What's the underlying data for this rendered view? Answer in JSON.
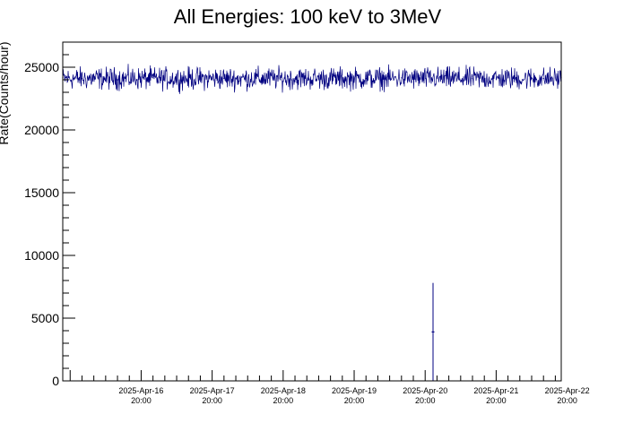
{
  "chart_data": {
    "type": "line",
    "title": "All Energies:  100 keV to 3MeV",
    "ylabel": "Rate(Counts/hour)",
    "xlabel": "",
    "ylim": [
      0,
      27000
    ],
    "xlim": [
      "2025-04-15 17:30",
      "2025-04-22 18:00"
    ],
    "y_ticks": [
      0,
      5000,
      10000,
      15000,
      20000,
      25000
    ],
    "x_ticks": [
      {
        "value": "2025-04-16 20:00",
        "date_label": "2025-Apr-16",
        "time_label": "20:00"
      },
      {
        "value": "2025-04-17 20:00",
        "date_label": "2025-Apr-17",
        "time_label": "20:00"
      },
      {
        "value": "2025-04-18 20:00",
        "date_label": "2025-Apr-18",
        "time_label": "20:00"
      },
      {
        "value": "2025-04-19 20:00",
        "date_label": "2025-Apr-19",
        "time_label": "20:00"
      },
      {
        "value": "2025-04-20 20:00",
        "date_label": "2025-Apr-20",
        "time_label": "20:00"
      },
      {
        "value": "2025-04-21 20:00",
        "date_label": "2025-Apr-21",
        "time_label": "20:00"
      },
      {
        "value": "2025-04-22 20:00",
        "date_label": "2025-Apr-22",
        "time_label": "20:00"
      }
    ],
    "series": [
      {
        "color": "#000080",
        "baseline_mean": 24100,
        "noise_band": [
          23000,
          25600
        ],
        "points": [
          {
            "x": "2025-04-15 17:30",
            "y": 24200
          },
          {
            "x": "2025-04-16 00:00",
            "y": 24100
          },
          {
            "x": "2025-04-16 12:00",
            "y": 24000
          },
          {
            "x": "2025-04-17 00:00",
            "y": 24150
          },
          {
            "x": "2025-04-17 12:00",
            "y": 24050
          },
          {
            "x": "2025-04-18 00:00",
            "y": 24100
          },
          {
            "x": "2025-04-18 12:00",
            "y": 24000
          },
          {
            "x": "2025-04-19 00:00",
            "y": 24100
          },
          {
            "x": "2025-04-19 12:00",
            "y": 24050
          },
          {
            "x": "2025-04-20 00:00",
            "y": 24100
          },
          {
            "x": "2025-04-20 12:00",
            "y": 24150
          },
          {
            "x": "2025-04-20 22:40",
            "y": 7800
          },
          {
            "x": "2025-04-20 22:40",
            "y": 3900
          },
          {
            "x": "2025-04-21 00:00",
            "y": 24200
          },
          {
            "x": "2025-04-21 12:00",
            "y": 24100
          },
          {
            "x": "2025-04-22 00:00",
            "y": 24150
          },
          {
            "x": "2025-04-22 12:00",
            "y": 24100
          },
          {
            "x": "2025-04-22 18:00",
            "y": 24200
          }
        ]
      }
    ],
    "grid": false
  }
}
